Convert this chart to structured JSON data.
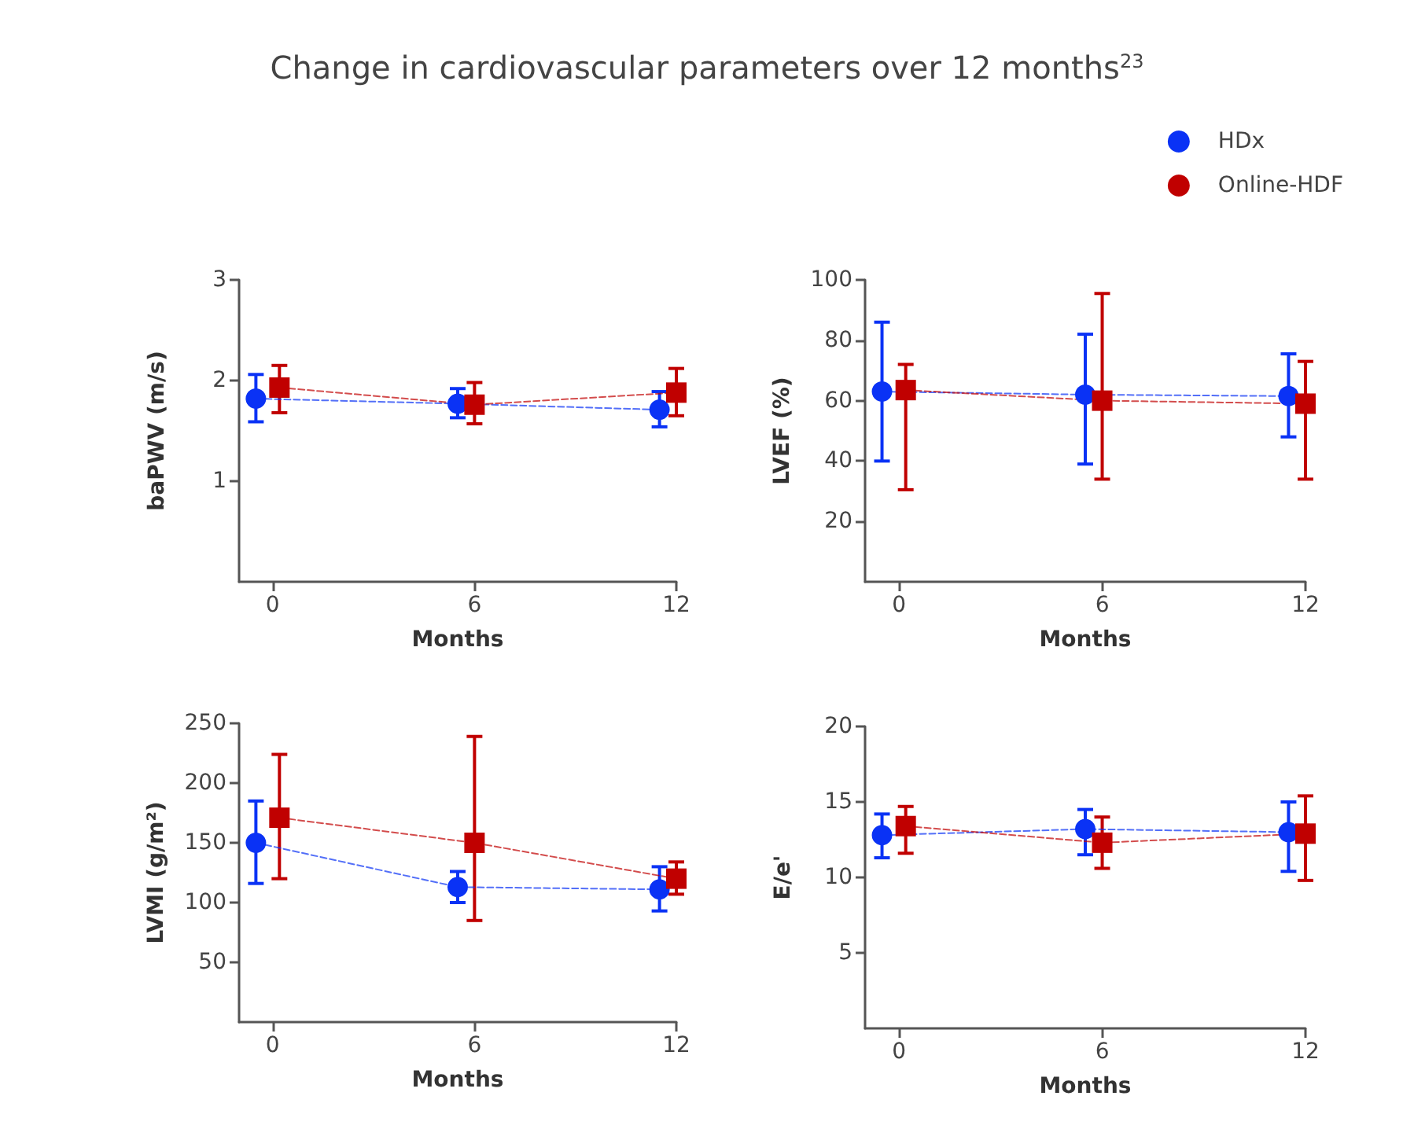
{
  "chart_data": [
    {
      "type": "line",
      "title": "Change in cardiovascular parameters over 12 months$^{23}$",
      "xlabel": "Months",
      "ylabel": "baPWV (m/s)",
      "xlim": [
        -1,
        12
      ],
      "xticks": [
        0,
        6,
        12
      ],
      "ylim": [
        0,
        3
      ],
      "yticks": [
        1,
        2,
        3
      ],
      "legend": "top right",
      "grid": false,
      "line_style": "dashed",
      "series": [
        {
          "name": "HDx",
          "color": "#0a32f5",
          "marker": "circle",
          "x": [
            -0.5,
            5.5,
            11.5
          ],
          "values": [
            1.82,
            1.77,
            1.71
          ],
          "errors": [
            [
              1.59,
              2.06
            ],
            [
              1.63,
              1.92
            ],
            [
              1.54,
              1.89
            ]
          ]
        },
        {
          "name": "Online-HDF",
          "color": "#c00000",
          "marker": "square",
          "x": [
            0.2,
            6,
            12
          ],
          "values": [
            1.93,
            1.76,
            1.88
          ],
          "errors": [
            [
              1.68,
              2.15
            ],
            [
              1.57,
              1.98
            ],
            [
              1.65,
              2.12
            ]
          ]
        }
      ]
    },
    {
      "type": "line",
      "xlabel": "Months",
      "ylabel": "LVEF (%)",
      "xlim": [
        -1,
        12
      ],
      "xticks": [
        0,
        6,
        12
      ],
      "ylim": [
        0,
        100
      ],
      "yticks": [
        20,
        40,
        60,
        80,
        100
      ],
      "grid": false,
      "line_style": "dashed",
      "series": [
        {
          "color": "#0a32f5",
          "marker": "circle",
          "x": [
            -0.5,
            5.5,
            11.5
          ],
          "values": [
            63,
            62,
            61.5
          ],
          "errors": [
            [
              40,
              86
            ],
            [
              39,
              82
            ],
            [
              48,
              75.5
            ]
          ]
        },
        {
          "color": "#c00000",
          "marker": "square",
          "x": [
            0.2,
            6,
            12
          ],
          "values": [
            63.5,
            60,
            59
          ],
          "errors": [
            [
              30.5,
              72
            ],
            [
              34,
              95.5
            ],
            [
              34,
              73
            ]
          ]
        }
      ]
    },
    {
      "type": "line",
      "xlabel": "Months",
      "ylabel": "LVMI (g/m²)",
      "xlim": [
        -1,
        12
      ],
      "xticks": [
        0,
        6,
        12
      ],
      "ylim": [
        0,
        250
      ],
      "yticks": [
        50,
        100,
        150,
        200,
        250
      ],
      "grid": false,
      "line_style": "dashed",
      "series": [
        {
          "color": "#0a32f5",
          "marker": "circle",
          "x": [
            -0.5,
            5.5,
            11.5
          ],
          "values": [
            150,
            113,
            111
          ],
          "errors": [
            [
              116,
              185
            ],
            [
              100,
              126
            ],
            [
              93,
              130
            ]
          ]
        },
        {
          "color": "#c00000",
          "marker": "square",
          "x": [
            0.2,
            6,
            12
          ],
          "values": [
            171,
            150,
            120
          ],
          "errors": [
            [
              120,
              224
            ],
            [
              85,
              239
            ],
            [
              107,
              134
            ]
          ]
        }
      ]
    },
    {
      "type": "line",
      "xlabel": "Months",
      "ylabel": "E/e'",
      "xlim": [
        -1,
        12
      ],
      "xticks": [
        0,
        6,
        12
      ],
      "ylim": [
        0,
        20
      ],
      "yticks": [
        5,
        10,
        15,
        20
      ],
      "grid": false,
      "line_style": "dashed",
      "series": [
        {
          "color": "#0a32f5",
          "marker": "circle",
          "x": [
            -0.5,
            5.5,
            11.5
          ],
          "values": [
            12.8,
            13.2,
            13.0
          ],
          "errors": [
            [
              11.3,
              14.2
            ],
            [
              11.5,
              14.5
            ],
            [
              10.4,
              15.0
            ]
          ]
        },
        {
          "color": "#c00000",
          "marker": "square",
          "x": [
            0.2,
            6,
            12
          ],
          "values": [
            13.4,
            12.3,
            12.9
          ],
          "errors": [
            [
              11.6,
              14.7
            ],
            [
              10.6,
              14.0
            ],
            [
              9.8,
              15.4
            ]
          ]
        }
      ]
    }
  ]
}
